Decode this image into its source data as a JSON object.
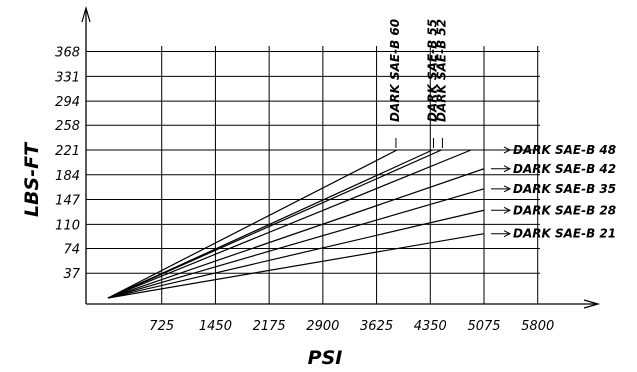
{
  "chart_data": {
    "type": "line",
    "xlabel": "PSI",
    "ylabel": "LBS-FT",
    "x_ticks": [
      "725",
      "1450",
      "2175",
      "2900",
      "3625",
      "4350",
      "5075",
      "5800"
    ],
    "y_ticks": [
      "37",
      "74",
      "110",
      "147",
      "184",
      "221",
      "258",
      "294",
      "331",
      "368"
    ],
    "xlim": [
      0,
      5800
    ],
    "ylim": [
      0,
      368
    ],
    "grid": true,
    "series": [
      {
        "name": "DARK SAE-B 60",
        "x": [
          0,
          3900
        ],
        "y": [
          0,
          221
        ]
      },
      {
        "name": "DARK SAE-B 55",
        "x": [
          0,
          4380
        ],
        "y": [
          0,
          221
        ]
      },
      {
        "name": "DARK SAE-B 52",
        "x": [
          0,
          4500
        ],
        "y": [
          0,
          221
        ]
      },
      {
        "name": "DARK SAE-B 48",
        "x": [
          0,
          4900
        ],
        "y": [
          0,
          221
        ]
      },
      {
        "name": "DARK SAE-B 42",
        "x": [
          0,
          5075
        ],
        "y": [
          0,
          193
        ]
      },
      {
        "name": "DARK SAE-B 35",
        "x": [
          0,
          5075
        ],
        "y": [
          0,
          163
        ]
      },
      {
        "name": "DARK SAE-B 28",
        "x": [
          0,
          5075
        ],
        "y": [
          0,
          131
        ]
      },
      {
        "name": "DARK SAE-B 21",
        "x": [
          0,
          5075
        ],
        "y": [
          0,
          96
        ]
      }
    ]
  }
}
